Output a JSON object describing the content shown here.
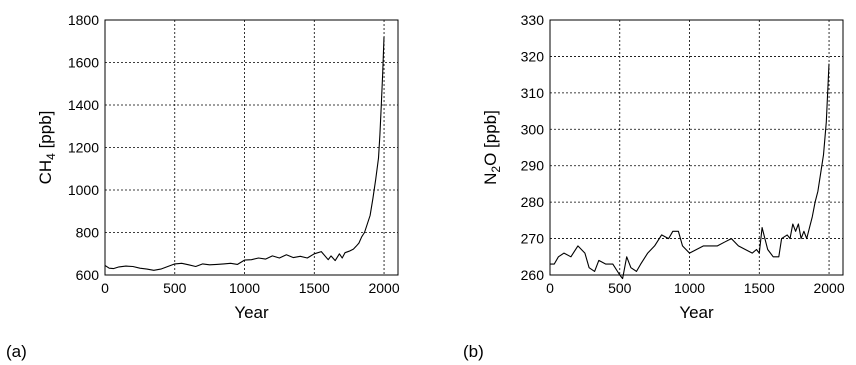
{
  "chart_data": [
    {
      "type": "line",
      "panel_label": "(a)",
      "xlabel": "Year",
      "ylabel_main": "CH",
      "ylabel_sub": "4",
      "ylabel_unit": " [ppb]",
      "xlim": [
        0,
        2100
      ],
      "ylim": [
        600,
        1800
      ],
      "xticks": [
        0,
        500,
        1000,
        1500,
        2000
      ],
      "yticks": [
        600,
        800,
        1000,
        1200,
        1400,
        1600,
        1800
      ],
      "grid": true,
      "series": [
        {
          "x": [
            0,
            30,
            60,
            100,
            150,
            200,
            250,
            300,
            350,
            400,
            450,
            500,
            550,
            600,
            650,
            700,
            750,
            800,
            850,
            900,
            950,
            1000,
            1050,
            1100,
            1150,
            1200,
            1250,
            1300,
            1350,
            1400,
            1450,
            1500,
            1550,
            1600,
            1620,
            1650,
            1680,
            1700,
            1720,
            1750,
            1780,
            1800,
            1820,
            1840,
            1860,
            1880,
            1900,
            1920,
            1940,
            1960,
            1970,
            1980,
            1990,
            2000
          ],
          "y": [
            645,
            632,
            630,
            638,
            642,
            640,
            632,
            628,
            622,
            628,
            640,
            652,
            655,
            648,
            640,
            652,
            648,
            650,
            652,
            655,
            650,
            670,
            672,
            680,
            675,
            690,
            680,
            695,
            682,
            688,
            680,
            700,
            710,
            672,
            690,
            668,
            700,
            680,
            705,
            712,
            722,
            735,
            750,
            780,
            800,
            840,
            880,
            960,
            1050,
            1150,
            1260,
            1400,
            1550,
            1720
          ]
        }
      ]
    },
    {
      "type": "line",
      "panel_label": "(b)",
      "xlabel": "Year",
      "ylabel_main": "N",
      "ylabel_sub": "2",
      "ylabel_unit": "O [ppb]",
      "xlim": [
        0,
        2100
      ],
      "ylim": [
        260,
        330
      ],
      "xticks": [
        0,
        500,
        1000,
        1500,
        2000
      ],
      "yticks": [
        260,
        270,
        280,
        290,
        300,
        310,
        320,
        330
      ],
      "grid": true,
      "series": [
        {
          "x": [
            0,
            30,
            60,
            100,
            150,
            200,
            250,
            280,
            320,
            350,
            400,
            450,
            500,
            520,
            550,
            580,
            620,
            650,
            700,
            750,
            800,
            850,
            880,
            920,
            950,
            1000,
            1050,
            1100,
            1150,
            1200,
            1250,
            1300,
            1350,
            1400,
            1450,
            1480,
            1500,
            1520,
            1540,
            1560,
            1600,
            1640,
            1660,
            1700,
            1720,
            1740,
            1760,
            1780,
            1800,
            1820,
            1840,
            1860,
            1880,
            1900,
            1920,
            1940,
            1960,
            1980,
            2000
          ],
          "y": [
            263,
            263,
            265,
            266,
            265,
            268,
            266,
            262,
            261,
            264,
            263,
            263,
            260,
            259,
            265,
            262,
            261,
            263,
            266,
            268,
            271,
            270,
            272,
            272,
            268,
            266,
            267,
            268,
            268,
            268,
            269,
            270,
            268,
            267,
            266,
            267,
            266,
            273,
            270,
            267,
            265,
            265,
            270,
            271,
            270,
            274,
            272,
            274,
            270,
            272,
            270,
            273,
            276,
            280,
            283,
            288,
            293,
            302,
            318
          ]
        }
      ]
    }
  ]
}
